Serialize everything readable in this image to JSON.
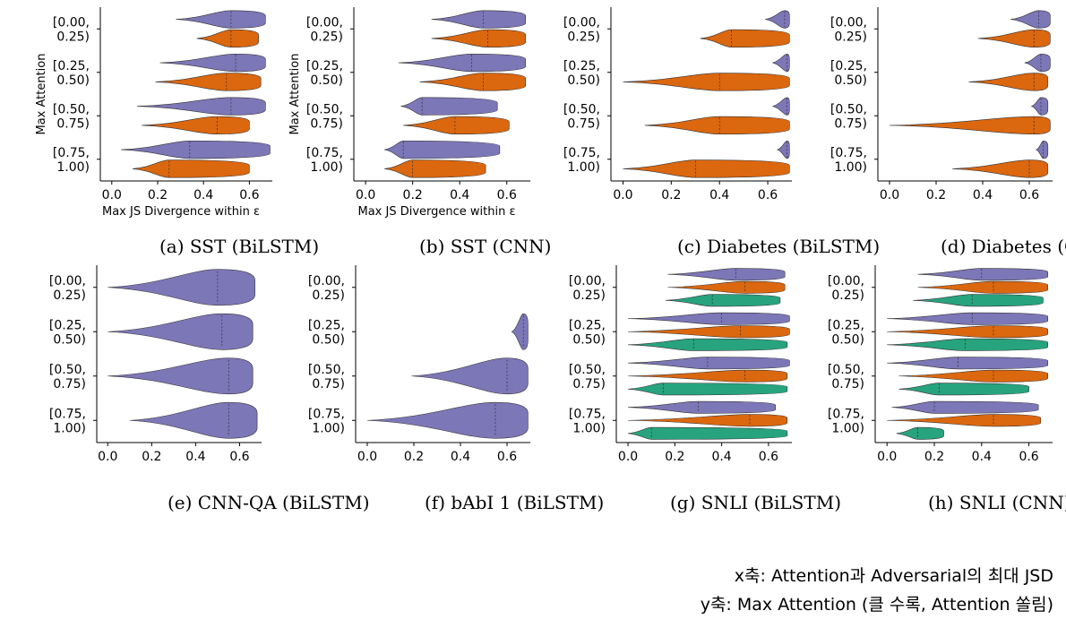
{
  "colors": {
    "purple": "#7570b3",
    "orange": "#d95f02",
    "green": "#1b9e77"
  },
  "notes": {
    "line1": "x축: Attention과 Adversarial의 최대 JSD",
    "line2": "y축: Max Attention (클 수록, Attention 쏠림)"
  },
  "chart_data": [
    {
      "type": "violin",
      "caption": "(a) SST (BiLSTM)",
      "xlabel": "Max JS Divergence within ε",
      "ylabel": "Max Attention",
      "xlim": [
        -0.05,
        0.7
      ],
      "xticks": [
        "0.0",
        "0.2",
        "0.4",
        "0.6"
      ],
      "categories": [
        "[0.00,\n0.25)",
        "[0.25,\n0.50)",
        "[0.50,\n0.75)",
        "[0.75,\n1.00)"
      ],
      "series": [
        {
          "color": "purple",
          "values": [
            [
              0.28,
              0.52,
              0.67
            ],
            [
              0.21,
              0.54,
              0.67
            ],
            [
              0.11,
              0.52,
              0.67
            ],
            [
              0.04,
              0.34,
              0.69
            ]
          ]
        },
        {
          "color": "orange",
          "values": [
            [
              0.37,
              0.52,
              0.64
            ],
            [
              0.19,
              0.5,
              0.65
            ],
            [
              0.13,
              0.46,
              0.6
            ],
            [
              0.09,
              0.25,
              0.6
            ]
          ]
        }
      ]
    },
    {
      "type": "violin",
      "caption": "(b) SST (CNN)",
      "xlabel": "Max JS Divergence within ε",
      "ylabel": "Max Attention",
      "xlim": [
        -0.05,
        0.7
      ],
      "xticks": [
        "0.0",
        "0.2",
        "0.4",
        "0.6"
      ],
      "categories": [
        "[0.00,\n0.25)",
        "[0.25,\n0.50)",
        "[0.50,\n0.75)",
        "[0.75,\n1.00)"
      ],
      "series": [
        {
          "color": "purple",
          "values": [
            [
              0.28,
              0.5,
              0.68
            ],
            [
              0.14,
              0.45,
              0.68
            ],
            [
              0.15,
              0.24,
              0.56
            ],
            [
              0.08,
              0.16,
              0.57
            ]
          ]
        },
        {
          "color": "orange",
          "values": [
            [
              0.28,
              0.52,
              0.68
            ],
            [
              0.23,
              0.5,
              0.68
            ],
            [
              0.16,
              0.38,
              0.61
            ],
            [
              0.08,
              0.2,
              0.51
            ]
          ]
        }
      ]
    },
    {
      "type": "violin",
      "caption": "(c) Diabetes (BiLSTM)",
      "xlabel": "",
      "ylabel": "",
      "xlim": [
        -0.05,
        0.7
      ],
      "xticks": [
        "0.0",
        "0.2",
        "0.4",
        "0.6"
      ],
      "categories": [
        "[0.00,\n0.25)",
        "[0.25,\n0.50)",
        "[0.50,\n0.75)",
        "[0.75,\n1.00)"
      ],
      "series": [
        {
          "color": "purple",
          "values": [
            [
              0.59,
              0.67,
              0.69
            ],
            [
              0.62,
              0.68,
              0.69
            ],
            [
              0.62,
              0.68,
              0.69
            ],
            [
              0.64,
              0.68,
              0.69
            ]
          ]
        },
        {
          "color": "orange",
          "values": [
            [
              0.32,
              0.45,
              0.69
            ],
            [
              0.0,
              0.4,
              0.69
            ],
            [
              0.09,
              0.4,
              0.69
            ],
            [
              0.0,
              0.3,
              0.69
            ]
          ]
        }
      ]
    },
    {
      "type": "violin",
      "caption": "(d) Diabetes (CNN)",
      "xlabel": "",
      "ylabel": "",
      "xlim": [
        -0.05,
        0.7
      ],
      "xticks": [
        "0.0",
        "0.2",
        "0.4",
        "0.6"
      ],
      "categories": [
        "[0.00,\n0.25)",
        "[0.25,\n0.50)",
        "[0.50,\n0.75)",
        "[0.75,\n1.00)"
      ],
      "series": [
        {
          "color": "purple",
          "values": [
            [
              0.52,
              0.64,
              0.69
            ],
            [
              0.58,
              0.65,
              0.69
            ],
            [
              0.61,
              0.65,
              0.68
            ],
            [
              0.63,
              0.66,
              0.68
            ]
          ]
        },
        {
          "color": "orange",
          "values": [
            [
              0.38,
              0.62,
              0.69
            ],
            [
              0.34,
              0.62,
              0.68
            ],
            [
              0.0,
              0.62,
              0.69
            ],
            [
              0.27,
              0.6,
              0.68
            ]
          ]
        }
      ]
    },
    {
      "type": "violin",
      "caption": "(e) CNN-QA (BiLSTM)",
      "xlabel": "",
      "ylabel": "",
      "xlim": [
        -0.05,
        0.7
      ],
      "xticks": [
        "0.0",
        "0.2",
        "0.4",
        "0.6"
      ],
      "categories": [
        "[0.00,\n0.25)",
        "[0.25,\n0.50)",
        "[0.50,\n0.75)",
        "[0.75,\n1.00)"
      ],
      "series": [
        {
          "color": "purple",
          "values": [
            [
              0.0,
              0.5,
              0.67
            ],
            [
              0.0,
              0.52,
              0.66
            ],
            [
              0.0,
              0.55,
              0.66
            ],
            [
              0.1,
              0.55,
              0.68
            ]
          ]
        }
      ]
    },
    {
      "type": "violin",
      "caption": "(f) bAbI 1 (BiLSTM)",
      "xlabel": "",
      "ylabel": "",
      "xlim": [
        -0.05,
        0.7
      ],
      "xticks": [
        "0.0",
        "0.2",
        "0.4",
        "0.6"
      ],
      "categories": [
        "[0.00,\n0.25)",
        "[0.25,\n0.50)",
        "[0.50,\n0.75)",
        "[0.75,\n1.00)"
      ],
      "series": [
        {
          "color": "purple",
          "values": [
            null,
            [
              0.62,
              0.67,
              0.69
            ],
            [
              0.19,
              0.6,
              0.69
            ],
            [
              0.0,
              0.55,
              0.69
            ]
          ]
        }
      ]
    },
    {
      "type": "violin",
      "caption": "(g) SNLI (BiLSTM)",
      "xlabel": "",
      "ylabel": "",
      "xlim": [
        -0.05,
        0.7
      ],
      "xticks": [
        "0.0",
        "0.2",
        "0.4",
        "0.6"
      ],
      "categories": [
        "[0.00,\n0.25)",
        "[0.25,\n0.50)",
        "[0.50,\n0.75)",
        "[0.75,\n1.00)"
      ],
      "series": [
        {
          "color": "purple",
          "values": [
            [
              0.17,
              0.46,
              0.67
            ],
            [
              0.0,
              0.4,
              0.69
            ],
            [
              0.0,
              0.34,
              0.69
            ],
            [
              0.0,
              0.3,
              0.63
            ]
          ]
        },
        {
          "color": "orange",
          "values": [
            [
              0.17,
              0.5,
              0.67
            ],
            [
              0.0,
              0.48,
              0.69
            ],
            [
              0.0,
              0.5,
              0.68
            ],
            [
              0.0,
              0.52,
              0.68
            ]
          ]
        },
        {
          "color": "green",
          "values": [
            [
              0.16,
              0.36,
              0.65
            ],
            [
              0.0,
              0.28,
              0.68
            ],
            [
              0.0,
              0.15,
              0.68
            ],
            [
              0.0,
              0.1,
              0.68
            ]
          ]
        }
      ]
    },
    {
      "type": "violin",
      "caption": "(h) SNLI (CNN)",
      "xlabel": "",
      "ylabel": "",
      "xlim": [
        -0.05,
        0.7
      ],
      "xticks": [
        "0.0",
        "0.2",
        "0.4",
        "0.6"
      ],
      "categories": [
        "[0.00,\n0.25)",
        "[0.25,\n0.50)",
        "[0.50,\n0.75)",
        "[0.75,\n1.00)"
      ],
      "series": [
        {
          "color": "purple",
          "values": [
            [
              0.13,
              0.4,
              0.68
            ],
            [
              0.0,
              0.36,
              0.68
            ],
            [
              0.0,
              0.3,
              0.68
            ],
            [
              0.02,
              0.2,
              0.64
            ]
          ]
        },
        {
          "color": "orange",
          "values": [
            [
              0.13,
              0.45,
              0.68
            ],
            [
              0.0,
              0.45,
              0.68
            ],
            [
              0.05,
              0.45,
              0.68
            ],
            [
              0.0,
              0.45,
              0.65
            ]
          ]
        },
        {
          "color": "green",
          "values": [
            [
              0.11,
              0.36,
              0.66
            ],
            [
              0.0,
              0.33,
              0.68
            ],
            [
              0.05,
              0.22,
              0.6
            ],
            [
              0.04,
              0.13,
              0.24
            ]
          ]
        }
      ]
    }
  ]
}
